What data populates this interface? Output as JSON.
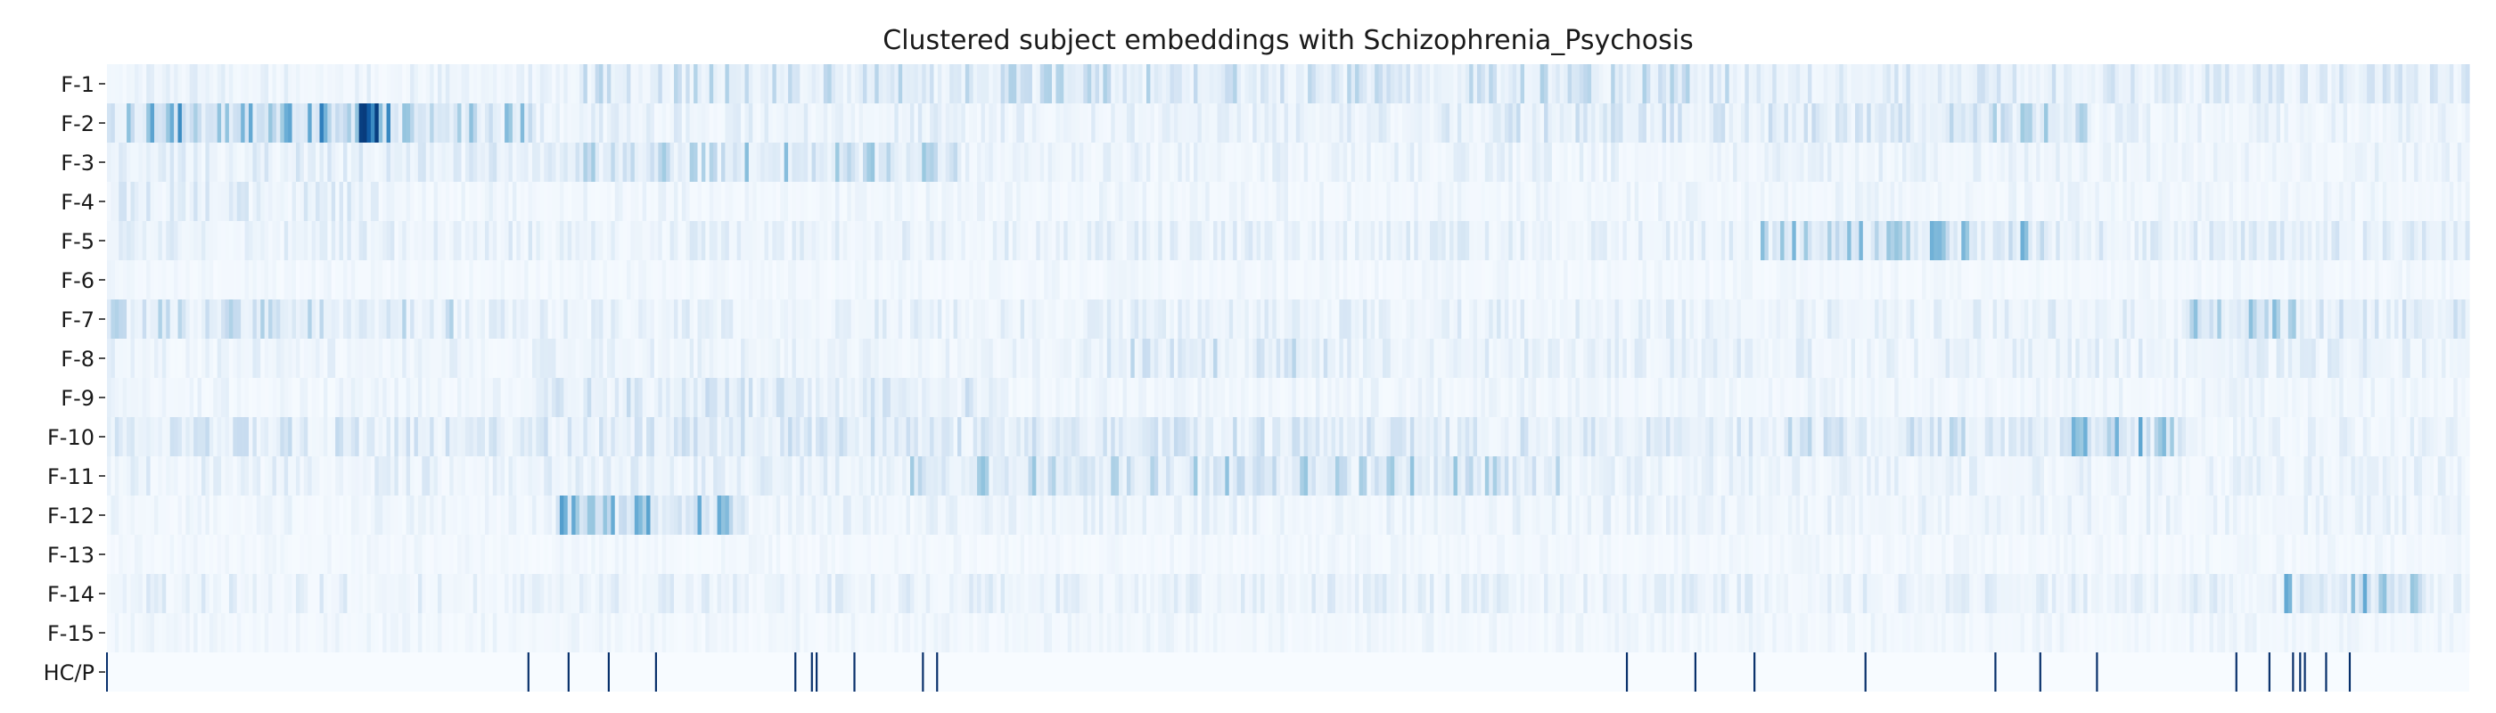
{
  "chart_data": {
    "type": "heatmap",
    "title": "Clustered subject embeddings with Schizophrenia_Psychosis",
    "rows": [
      "F-1",
      "F-2",
      "F-3",
      "F-4",
      "F-5",
      "F-6",
      "F-7",
      "F-8",
      "F-9",
      "F-10",
      "F-11",
      "F-12",
      "F-13",
      "F-14",
      "F-15",
      "HC/P"
    ],
    "n_subjects": 600,
    "colormap": [
      "#f7fbff",
      "#deebf7",
      "#c6dbef",
      "#9ecae1",
      "#6baed6",
      "#4292c6",
      "#2171b5",
      "#08519c",
      "#08306b"
    ],
    "value_range": [
      0,
      1
    ],
    "xlabel": "",
    "ylabel": "",
    "grid": false,
    "feature_clusters": [
      {
        "row": "F-1",
        "segments": [
          [
            0.0,
            0.2,
            0.08
          ],
          [
            0.2,
            0.7,
            0.2
          ],
          [
            0.7,
            1.0,
            0.15
          ]
        ]
      },
      {
        "row": "F-2",
        "segments": [
          [
            0.0,
            0.09,
            0.42
          ],
          [
            0.09,
            0.12,
            0.62
          ],
          [
            0.12,
            0.18,
            0.3
          ],
          [
            0.18,
            0.55,
            0.1
          ],
          [
            0.55,
            0.78,
            0.16
          ],
          [
            0.78,
            0.84,
            0.26
          ],
          [
            0.84,
            1.0,
            0.08
          ]
        ]
      },
      {
        "row": "F-3",
        "segments": [
          [
            0.0,
            0.17,
            0.12
          ],
          [
            0.17,
            0.27,
            0.22
          ],
          [
            0.27,
            0.36,
            0.28
          ],
          [
            0.36,
            1.0,
            0.08
          ]
        ]
      },
      {
        "row": "F-4",
        "segments": [
          [
            0.0,
            0.12,
            0.12
          ],
          [
            0.12,
            1.0,
            0.06
          ]
        ]
      },
      {
        "row": "F-5",
        "segments": [
          [
            0.0,
            0.7,
            0.1
          ],
          [
            0.7,
            0.82,
            0.3
          ],
          [
            0.82,
            1.0,
            0.12
          ]
        ]
      },
      {
        "row": "F-6",
        "segments": [
          [
            0.0,
            1.0,
            0.04
          ]
        ]
      },
      {
        "row": "F-7",
        "segments": [
          [
            0.0,
            0.15,
            0.2
          ],
          [
            0.15,
            0.88,
            0.1
          ],
          [
            0.88,
            0.93,
            0.28
          ],
          [
            0.93,
            1.0,
            0.15
          ]
        ]
      },
      {
        "row": "F-8",
        "segments": [
          [
            0.0,
            0.42,
            0.08
          ],
          [
            0.42,
            0.52,
            0.18
          ],
          [
            0.52,
            1.0,
            0.1
          ]
        ]
      },
      {
        "row": "F-9",
        "segments": [
          [
            0.0,
            0.18,
            0.06
          ],
          [
            0.18,
            0.38,
            0.16
          ],
          [
            0.38,
            1.0,
            0.06
          ]
        ]
      },
      {
        "row": "F-10",
        "segments": [
          [
            0.0,
            0.15,
            0.16
          ],
          [
            0.15,
            0.62,
            0.16
          ],
          [
            0.62,
            0.83,
            0.18
          ],
          [
            0.83,
            0.88,
            0.35
          ],
          [
            0.88,
            1.0,
            0.08
          ]
        ]
      },
      {
        "row": "F-11",
        "segments": [
          [
            0.0,
            0.34,
            0.1
          ],
          [
            0.34,
            0.62,
            0.25
          ],
          [
            0.62,
            1.0,
            0.08
          ]
        ]
      },
      {
        "row": "F-12",
        "segments": [
          [
            0.0,
            0.19,
            0.06
          ],
          [
            0.19,
            0.27,
            0.36
          ],
          [
            0.27,
            1.0,
            0.08
          ]
        ]
      },
      {
        "row": "F-13",
        "segments": [
          [
            0.0,
            1.0,
            0.04
          ]
        ]
      },
      {
        "row": "F-14",
        "segments": [
          [
            0.0,
            0.92,
            0.1
          ],
          [
            0.92,
            0.98,
            0.32
          ],
          [
            0.98,
            1.0,
            0.1
          ]
        ]
      },
      {
        "row": "F-15",
        "segments": [
          [
            0.0,
            1.0,
            0.05
          ]
        ]
      }
    ],
    "hc_p_row": {
      "background": "#f7fbff",
      "marker_color": "#08306b",
      "marker_value": 1,
      "positive_positions": [
        0.178,
        0.195,
        0.212,
        0.232,
        0.291,
        0.298,
        0.3,
        0.316,
        0.345,
        0.351,
        0.643,
        0.672,
        0.697,
        0.744,
        0.799,
        0.818,
        0.842,
        0.901,
        0.915,
        0.925,
        0.928,
        0.93,
        0.939,
        0.949
      ]
    }
  }
}
